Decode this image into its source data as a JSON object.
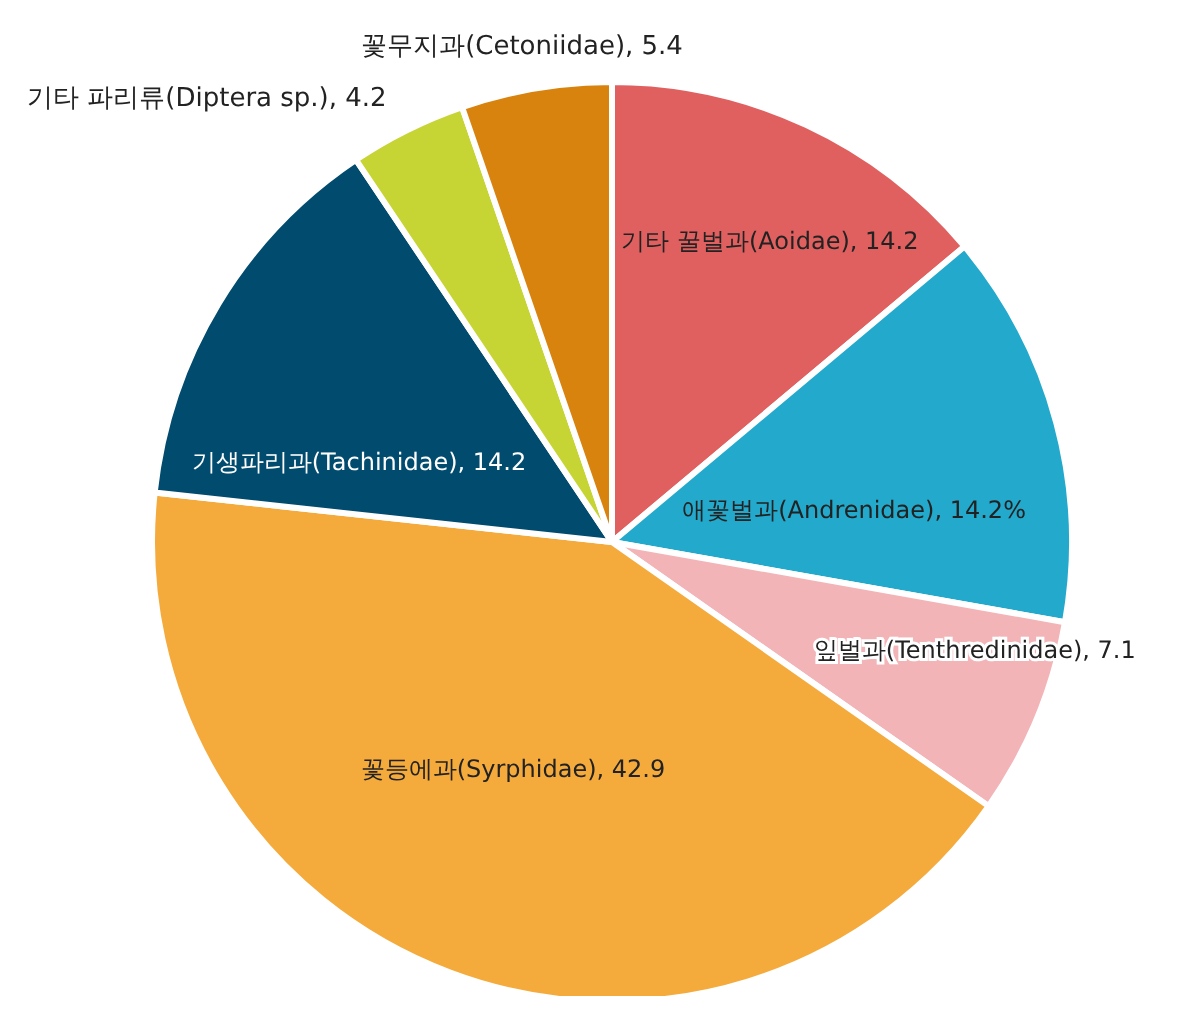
{
  "chart_data": {
    "type": "pie",
    "categories": [
      "기타 꿀벌과(Aoidae)",
      "애꽃벌과(Andrenidae)",
      "잎벌과(Tenthredinidae)",
      "꽃등에과(Syrphidae)",
      "기생파리과(Tachinidae)",
      "기타 파리류(Diptera sp.)",
      "꽃무지과(Cetoniidae)"
    ],
    "values": [
      14.2,
      14.2,
      7.1,
      42.9,
      14.2,
      4.2,
      5.4
    ],
    "value_labels": [
      "14.2",
      "14.2%",
      "7.1",
      "42.9",
      "14.2",
      "4.2",
      "5.4"
    ],
    "colors": [
      "#e06060",
      "#22a9cc",
      "#f2b4b7",
      "#f5aa3c",
      "#004b6e",
      "#c6d434",
      "#d9830f"
    ],
    "legend": false
  }
}
